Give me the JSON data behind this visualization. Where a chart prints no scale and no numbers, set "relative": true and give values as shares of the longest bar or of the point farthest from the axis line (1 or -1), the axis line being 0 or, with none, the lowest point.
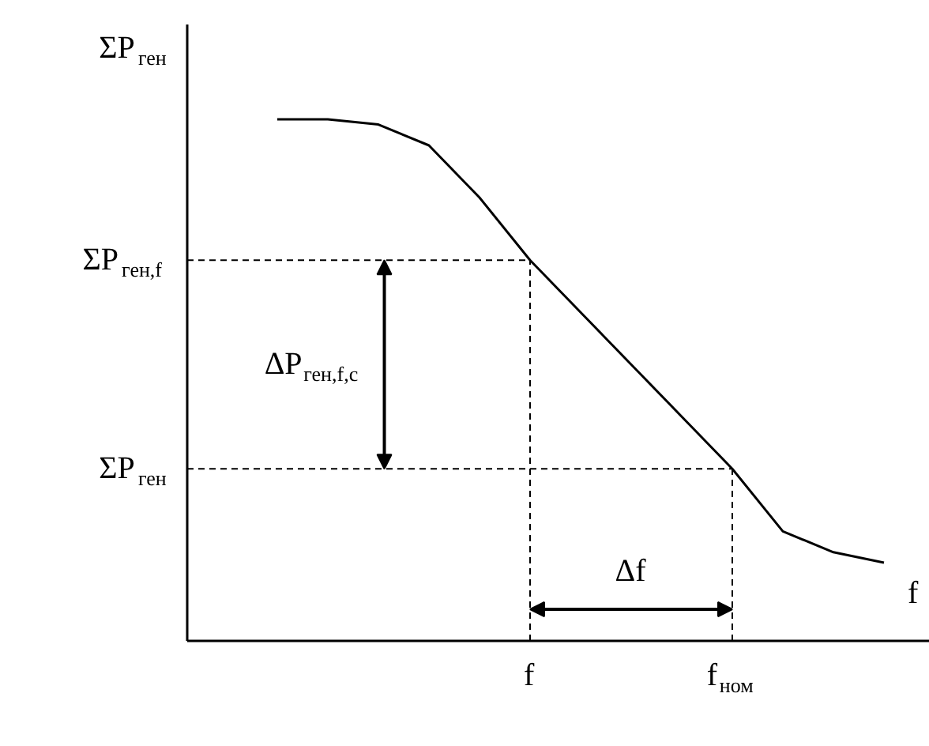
{
  "chart_data": {
    "type": "line",
    "relative": true,
    "xlabel": "f",
    "ylabel": "ΣP$_{ген}$",
    "categories": [
      null,
      null,
      null,
      null,
      null,
      "f",
      null,
      null,
      null,
      "f$_{ном}$",
      null,
      null,
      null
    ],
    "series": [
      {
        "color": "#000000",
        "values": [
          1.0,
          1.0,
          0.99,
          0.95,
          0.85,
          0.73,
          0.63,
          0.53,
          0.43,
          0.33,
          0.21,
          0.17,
          0.15
        ]
      }
    ],
    "grid": false,
    "marker": "none",
    "line_style": "solid",
    "ref_lines": [
      {
        "axis": "y",
        "value": 0.73,
        "label": "ΣP$_{ген,f}$",
        "line_style": "dashed"
      },
      {
        "axis": "y",
        "value": 0.33,
        "label": "ΣP$_{ген}$",
        "line_style": "dashed"
      },
      {
        "axis": "x",
        "value": "f",
        "line_style": "dashed"
      },
      {
        "axis": "x",
        "value": "f$_{ном}$",
        "line_style": "dashed"
      }
    ],
    "annotations": [
      "ΔP$_{ген,f,c}$",
      "Δf"
    ]
  }
}
